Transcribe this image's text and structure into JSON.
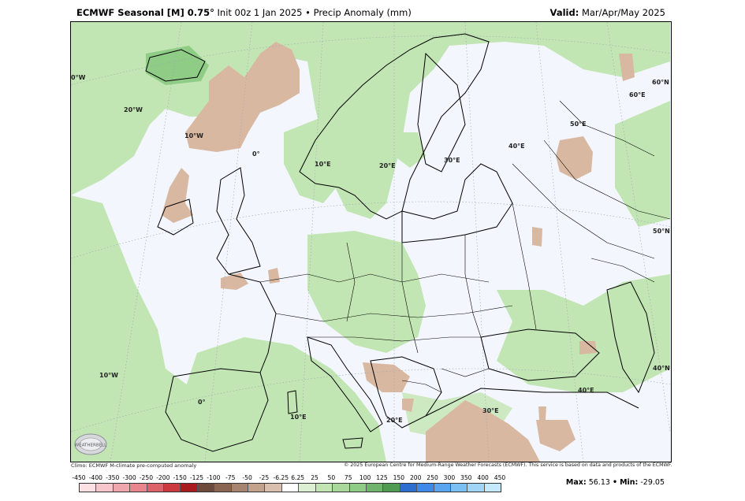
{
  "header": {
    "brand": "ECMWF Seasonal [M] 0.75°",
    "subtitle": "Init 00z 1 Jan 2025 • Precip Anomaly (mm)",
    "valid_label": "Valid:",
    "valid_value": "Mar/Apr/May 2025"
  },
  "footer": {
    "climo_note": "Climo: ECMWF M-climate pre-computed anomaly",
    "copyright": "© 2025 European Centre for Medium-Range Weather Forecasts (ECMWF). This service is based on data and products of the ECMWF.",
    "logo_text": "WEATHERBELL"
  },
  "stats": {
    "max_label": "Max:",
    "max_value": "56.13",
    "sep": "•",
    "min_label": "Min:",
    "min_value": "-29.05"
  },
  "map": {
    "grid_labels": {
      "lon_0w_top": "0°W",
      "lon_20w": "20°W",
      "lon_10w_top": "10°W",
      "lon_0": "0°",
      "lon_10e_top": "10°E",
      "lon_20e_top": "20°E",
      "lon_30e_top": "30°E",
      "lon_40e_top": "40°E",
      "lon_50e": "50°E",
      "lon_60e": "60°E",
      "lat_60n": "60°N",
      "lat_50n": "50°N",
      "lat_40n": "40°N",
      "lon_10w_bot": "10°W",
      "lon_0_bot": "0°",
      "lon_10e_bot": "10°E",
      "lon_20e_bot": "20°E",
      "lon_30e_bot": "30°E",
      "lon_40e_bot": "40°E"
    },
    "colors": {
      "ocean_background": "#f3f6fc",
      "wet_anomaly": "#c2e6b3",
      "wet_anomaly_strong": "#8fcc86",
      "dry_anomaly": "#d9b8a2",
      "coastline": "#000000"
    }
  },
  "colorbar": {
    "labels": [
      "-450",
      "-400",
      "-350",
      "-300",
      "-250",
      "-200",
      "-150",
      "-125",
      "-100",
      "-75",
      "-50",
      "-25",
      "-6.25",
      "6.25",
      "25",
      "50",
      "75",
      "100",
      "125",
      "150",
      "200",
      "250",
      "300",
      "350",
      "400",
      "450"
    ],
    "colors": [
      "#fbe0e4",
      "#f6c6cc",
      "#f0a6ad",
      "#e8858d",
      "#de6068",
      "#cc3a3f",
      "#a81c1f",
      "#6e4a3c",
      "#8a6652",
      "#a78470",
      "#c2a28d",
      "#d9bfae",
      "#ffffff",
      "#dcefd3",
      "#c2e6b3",
      "#a8d99a",
      "#8fcc86",
      "#6fb46c",
      "#4f9b52",
      "#2d6fcf",
      "#3f8ae6",
      "#5aa5ef",
      "#7ac0f4",
      "#9fd6f7",
      "#c4e9fb"
    ]
  }
}
